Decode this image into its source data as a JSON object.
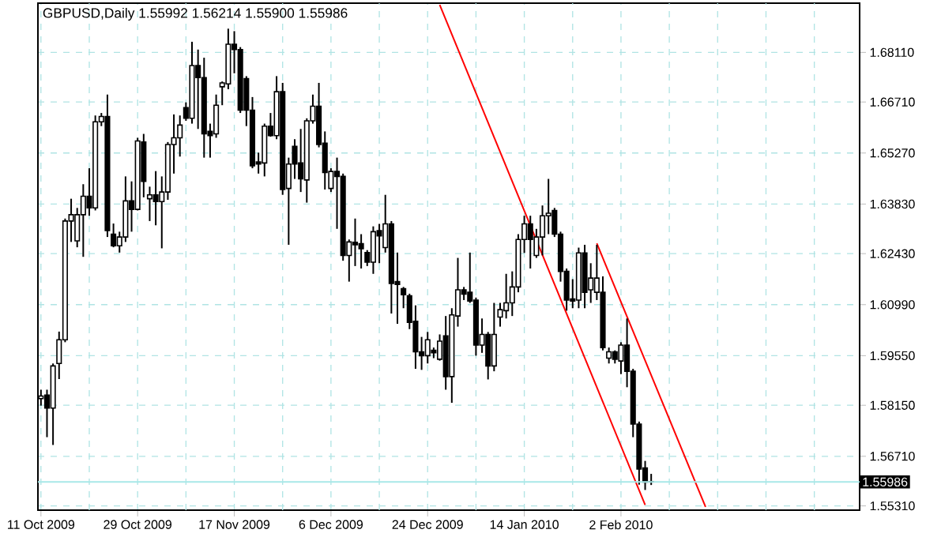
{
  "chart_data": {
    "type": "candlestick",
    "title": "GBPUSD,Daily  1.55992 1.56214 1.55900 1.55986",
    "categories": [
      "11 Oct 2009",
      null,
      null,
      null,
      null,
      null,
      null,
      null,
      null,
      null,
      null,
      null,
      null,
      null,
      null,
      null,
      "29 Oct 2009",
      null,
      null,
      null,
      null,
      null,
      null,
      null,
      null,
      null,
      null,
      null,
      null,
      null,
      null,
      null,
      "17 Nov 2009",
      null,
      null,
      null,
      null,
      null,
      null,
      null,
      null,
      null,
      null,
      null,
      null,
      null,
      null,
      null,
      "6 Dec 2009",
      null,
      null,
      null,
      null,
      null,
      null,
      null,
      null,
      null,
      null,
      null,
      null,
      null,
      null,
      null,
      "24 Dec 2009",
      null,
      null,
      null,
      null,
      null,
      null,
      null,
      null,
      null,
      null,
      null,
      null,
      null,
      null,
      null,
      "14 Jan 2010",
      null,
      null,
      null,
      null,
      null,
      null,
      null,
      null,
      null,
      null,
      null,
      null,
      null,
      null,
      null,
      "2 Feb 2010",
      null,
      null,
      null,
      null,
      null,
      null,
      null,
      null,
      null,
      null,
      null,
      null,
      null,
      null,
      null,
      null,
      null,
      null,
      null,
      null,
      null,
      null,
      null,
      null,
      null,
      null,
      null,
      null,
      null,
      null,
      null,
      null,
      null,
      null,
      null,
      null,
      null,
      null,
      null
    ],
    "ohlc": [
      [
        1.5834,
        1.5859,
        1.5814,
        1.5841
      ],
      [
        1.5844,
        1.5859,
        1.5725,
        1.5807
      ],
      [
        1.5807,
        1.5933,
        1.5703,
        1.5926
      ],
      [
        1.5933,
        1.6023,
        1.5889,
        1.6
      ],
      [
        1.6,
        1.6342,
        1.5993,
        1.6335
      ],
      [
        1.6335,
        1.6398,
        1.6276,
        1.6353
      ],
      [
        1.6279,
        1.6372,
        1.6261,
        1.6353
      ],
      [
        1.6353,
        1.6439,
        1.6234,
        1.6405
      ],
      [
        1.6405,
        1.6484,
        1.635,
        1.6372
      ],
      [
        1.6372,
        1.6633,
        1.6365,
        1.6615
      ],
      [
        1.6615,
        1.664,
        1.6603,
        1.663
      ],
      [
        1.663,
        1.6692,
        1.629,
        1.6308
      ],
      [
        1.6298,
        1.6328,
        1.6261,
        1.6265
      ],
      [
        1.6265,
        1.6305,
        1.6246,
        1.629
      ],
      [
        1.629,
        1.6461,
        1.6276,
        1.6392
      ],
      [
        1.6392,
        1.6447,
        1.6305,
        1.6368
      ],
      [
        1.6368,
        1.657,
        1.6365,
        1.6561
      ],
      [
        1.6558,
        1.6581,
        1.6402,
        1.6447
      ],
      [
        1.6398,
        1.6432,
        1.6335,
        1.6409
      ],
      [
        1.6409,
        1.6476,
        1.6323,
        1.639
      ],
      [
        1.639,
        1.6461,
        1.6258,
        1.6417
      ],
      [
        1.6417,
        1.6558,
        1.6395,
        1.6551
      ],
      [
        1.6551,
        1.6636,
        1.6469,
        1.657
      ],
      [
        1.657,
        1.6633,
        1.6517,
        1.6606
      ],
      [
        1.6655,
        1.667,
        1.6618,
        1.6625
      ],
      [
        1.6625,
        1.6841,
        1.661,
        1.6774
      ],
      [
        1.6774,
        1.6819,
        1.6595,
        1.674
      ],
      [
        1.674,
        1.6796,
        1.6514,
        1.6581
      ],
      [
        1.6588,
        1.661,
        1.6514,
        1.6576
      ],
      [
        1.6581,
        1.6692,
        1.657,
        1.6662
      ],
      [
        1.6714,
        1.6729,
        1.6662,
        1.6725
      ],
      [
        1.6722,
        1.6878,
        1.6707,
        1.6834
      ],
      [
        1.6834,
        1.6871,
        1.6752,
        1.6819
      ],
      [
        1.6819,
        1.6826,
        1.664,
        1.6648
      ],
      [
        1.6737,
        1.6744,
        1.6603,
        1.6648
      ],
      [
        1.6648,
        1.6685,
        1.6484,
        1.6491
      ],
      [
        1.6502,
        1.6528,
        1.6469,
        1.6496
      ],
      [
        1.6499,
        1.661,
        1.6461,
        1.6603
      ],
      [
        1.6603,
        1.664,
        1.6573,
        1.6576
      ],
      [
        1.6576,
        1.6744,
        1.6566,
        1.67
      ],
      [
        1.67,
        1.6725,
        1.6409,
        1.6424
      ],
      [
        1.6427,
        1.6514,
        1.6268,
        1.6496
      ],
      [
        1.6546,
        1.6566,
        1.6454,
        1.6496
      ],
      [
        1.6499,
        1.6595,
        1.6417,
        1.6454
      ],
      [
        1.6451,
        1.6625,
        1.6387,
        1.6618
      ],
      [
        1.6618,
        1.6692,
        1.661,
        1.6659
      ],
      [
        1.6659,
        1.6725,
        1.6543,
        1.6551
      ],
      [
        1.6555,
        1.6588,
        1.6424,
        1.6472
      ],
      [
        1.6427,
        1.6484,
        1.6417,
        1.6475
      ],
      [
        1.6475,
        1.6514,
        1.6313,
        1.6461
      ],
      [
        1.6461,
        1.6469,
        1.6223,
        1.6238
      ],
      [
        1.6238,
        1.6283,
        1.6164,
        1.6276
      ],
      [
        1.6275,
        1.6342,
        1.6208,
        1.6268
      ],
      [
        1.6271,
        1.6298,
        1.6201,
        1.6257
      ],
      [
        1.6246,
        1.6253,
        1.6208,
        1.6219
      ],
      [
        1.6219,
        1.632,
        1.6186,
        1.6305
      ],
      [
        1.6308,
        1.6327,
        1.6216,
        1.6293
      ],
      [
        1.626,
        1.6409,
        1.6246,
        1.6327
      ],
      [
        1.6327,
        1.6335,
        1.6074,
        1.6159
      ],
      [
        1.6164,
        1.6246,
        1.6045,
        1.6156
      ],
      [
        1.6144,
        1.6149,
        1.6089,
        1.6127
      ],
      [
        1.6124,
        1.613,
        1.603,
        1.6049
      ],
      [
        1.6052,
        1.6097,
        1.5918,
        1.5966
      ],
      [
        1.5966,
        1.6008,
        1.5915,
        1.5955
      ],
      [
        1.5955,
        1.6022,
        1.5933,
        1.6
      ],
      [
        1.597,
        1.5978,
        1.5948,
        1.5963
      ],
      [
        1.5945,
        1.6015,
        1.5941,
        1.5996
      ],
      [
        1.6011,
        1.6067,
        1.5859,
        1.5896
      ],
      [
        1.5896,
        1.6089,
        1.5822,
        1.607
      ],
      [
        1.6067,
        1.6231,
        1.6037,
        1.6141
      ],
      [
        1.6141,
        1.6149,
        1.6112,
        1.6129
      ],
      [
        1.6134,
        1.6246,
        1.6104,
        1.6109
      ],
      [
        1.6112,
        1.6119,
        1.5955,
        1.5985
      ],
      [
        1.5985,
        1.606,
        1.5963,
        1.6015
      ],
      [
        1.6015,
        1.6022,
        1.5888,
        1.5926
      ],
      [
        1.5926,
        1.6104,
        1.5911,
        1.6015
      ],
      [
        1.6064,
        1.6104,
        1.6037,
        1.6085
      ],
      [
        1.6082,
        1.6186,
        1.606,
        1.6104
      ],
      [
        1.6104,
        1.6193,
        1.6067,
        1.6149
      ],
      [
        1.6149,
        1.6298,
        1.6134,
        1.6283
      ],
      [
        1.6283,
        1.635,
        1.6245,
        1.6327
      ],
      [
        1.6327,
        1.635,
        1.6201,
        1.6283
      ],
      [
        1.6238,
        1.6313,
        1.6231,
        1.629
      ],
      [
        1.629,
        1.6379,
        1.6238,
        1.635
      ],
      [
        1.635,
        1.6454,
        1.6298,
        1.6357
      ],
      [
        1.6365,
        1.6372,
        1.629,
        1.6298
      ],
      [
        1.6298,
        1.6305,
        1.6164,
        1.6193
      ],
      [
        1.6193,
        1.6201,
        1.6082,
        1.6112
      ],
      [
        1.6115,
        1.6171,
        1.6089,
        1.6109
      ],
      [
        1.6112,
        1.626,
        1.6089,
        1.6245
      ],
      [
        1.6245,
        1.6268,
        1.6089,
        1.6134
      ],
      [
        1.6141,
        1.6216,
        1.6104,
        1.6174
      ],
      [
        1.6134,
        1.6268,
        1.6112,
        1.6174
      ],
      [
        1.6134,
        1.6179,
        1.597,
        1.5978
      ],
      [
        1.5948,
        1.5978,
        1.5933,
        1.5966
      ],
      [
        1.5966,
        1.597,
        1.5933,
        1.5945
      ],
      [
        1.594,
        1.5993,
        1.5903,
        1.5985
      ],
      [
        1.5985,
        1.606,
        1.5866,
        1.5911
      ],
      [
        1.5911,
        1.5918,
        1.5725,
        1.5762
      ],
      [
        1.5762,
        1.5769,
        1.5591,
        1.5635
      ],
      [
        1.5638,
        1.5658,
        1.5576,
        1.5598
      ],
      [
        1.55992,
        1.56214,
        1.559,
        1.55986
      ],
      null,
      null,
      null,
      null,
      null,
      null,
      null,
      null,
      null,
      null,
      null,
      null,
      null,
      null,
      null,
      null,
      null,
      null,
      null,
      null,
      null,
      null,
      null,
      null,
      null,
      null,
      null,
      null,
      null,
      null,
      null,
      null,
      null,
      null
    ],
    "series": [
      {
        "type": "line",
        "color": "#ff0000",
        "values": [
          null,
          null,
          null,
          null,
          null,
          null,
          null,
          null,
          null,
          null,
          null,
          null,
          null,
          null,
          null,
          null,
          null,
          null,
          null,
          null,
          null,
          null,
          null,
          null,
          null,
          null,
          null,
          null,
          null,
          null,
          null,
          null,
          null,
          null,
          null,
          null,
          null,
          null,
          null,
          null,
          null,
          null,
          null,
          null,
          null,
          null,
          null,
          null,
          null,
          null,
          null,
          null,
          null,
          null,
          null,
          null,
          null,
          null,
          null,
          null,
          null,
          null,
          null,
          null,
          null,
          null,
          1.6945,
          null,
          null,
          null,
          null,
          null,
          null,
          null,
          null,
          null,
          null,
          null,
          null,
          null,
          null,
          null,
          null,
          null,
          null,
          null,
          null,
          null,
          null,
          null,
          null,
          null,
          null,
          null,
          null,
          null,
          null,
          null,
          null,
          null,
          1.5534,
          null,
          null,
          null,
          null,
          null,
          null,
          null,
          null,
          null,
          null,
          null,
          null,
          null,
          null,
          null,
          null,
          null,
          null,
          null,
          null,
          null,
          null,
          null,
          null,
          null,
          null,
          null,
          null,
          null,
          null,
          null,
          null,
          null,
          null,
          null
        ]
      },
      {
        "type": "line",
        "color": "#ff0000",
        "values": [
          null,
          null,
          null,
          null,
          null,
          null,
          null,
          null,
          null,
          null,
          null,
          null,
          null,
          null,
          null,
          null,
          null,
          null,
          null,
          null,
          null,
          null,
          null,
          null,
          null,
          null,
          null,
          null,
          null,
          null,
          null,
          null,
          null,
          null,
          null,
          null,
          null,
          null,
          null,
          null,
          null,
          null,
          null,
          null,
          null,
          null,
          null,
          null,
          null,
          null,
          null,
          null,
          null,
          null,
          null,
          null,
          null,
          null,
          null,
          null,
          null,
          null,
          null,
          null,
          null,
          null,
          null,
          null,
          null,
          null,
          null,
          null,
          null,
          null,
          null,
          null,
          null,
          null,
          null,
          null,
          null,
          null,
          null,
          null,
          null,
          null,
          null,
          null,
          null,
          null,
          null,
          null,
          1.6272,
          null,
          null,
          null,
          null,
          null,
          null,
          null,
          null,
          null,
          null,
          null,
          null,
          null,
          null,
          null,
          null,
          null,
          1.5528,
          null,
          null,
          null,
          null,
          null,
          null,
          null,
          null,
          null,
          null,
          null,
          null,
          null,
          null,
          null,
          null,
          null,
          null,
          null,
          null,
          null,
          null,
          null,
          null,
          null
        ]
      }
    ],
    "ylim": [
      1.5519,
      1.695
    ],
    "yticks": [
      {
        "value": 1.5531,
        "label": "1.55310"
      },
      {
        "value": 1.5671,
        "label": "1.56710"
      },
      {
        "value": 1.5815,
        "label": "1.58150"
      },
      {
        "value": 1.5955,
        "label": "1.59550"
      },
      {
        "value": 1.6099,
        "label": "1.60990"
      },
      {
        "value": 1.6243,
        "label": "1.62430"
      },
      {
        "value": 1.6383,
        "label": "1.63830"
      },
      {
        "value": 1.6527,
        "label": "1.65270"
      },
      {
        "value": 1.6671,
        "label": "1.66710"
      },
      {
        "value": 1.6811,
        "label": "1.68110"
      }
    ],
    "ref_lines": [
      {
        "axis": "y",
        "value": 1.55986,
        "label": "1.55986",
        "color": "#a8e8e8"
      }
    ],
    "grid": true
  }
}
